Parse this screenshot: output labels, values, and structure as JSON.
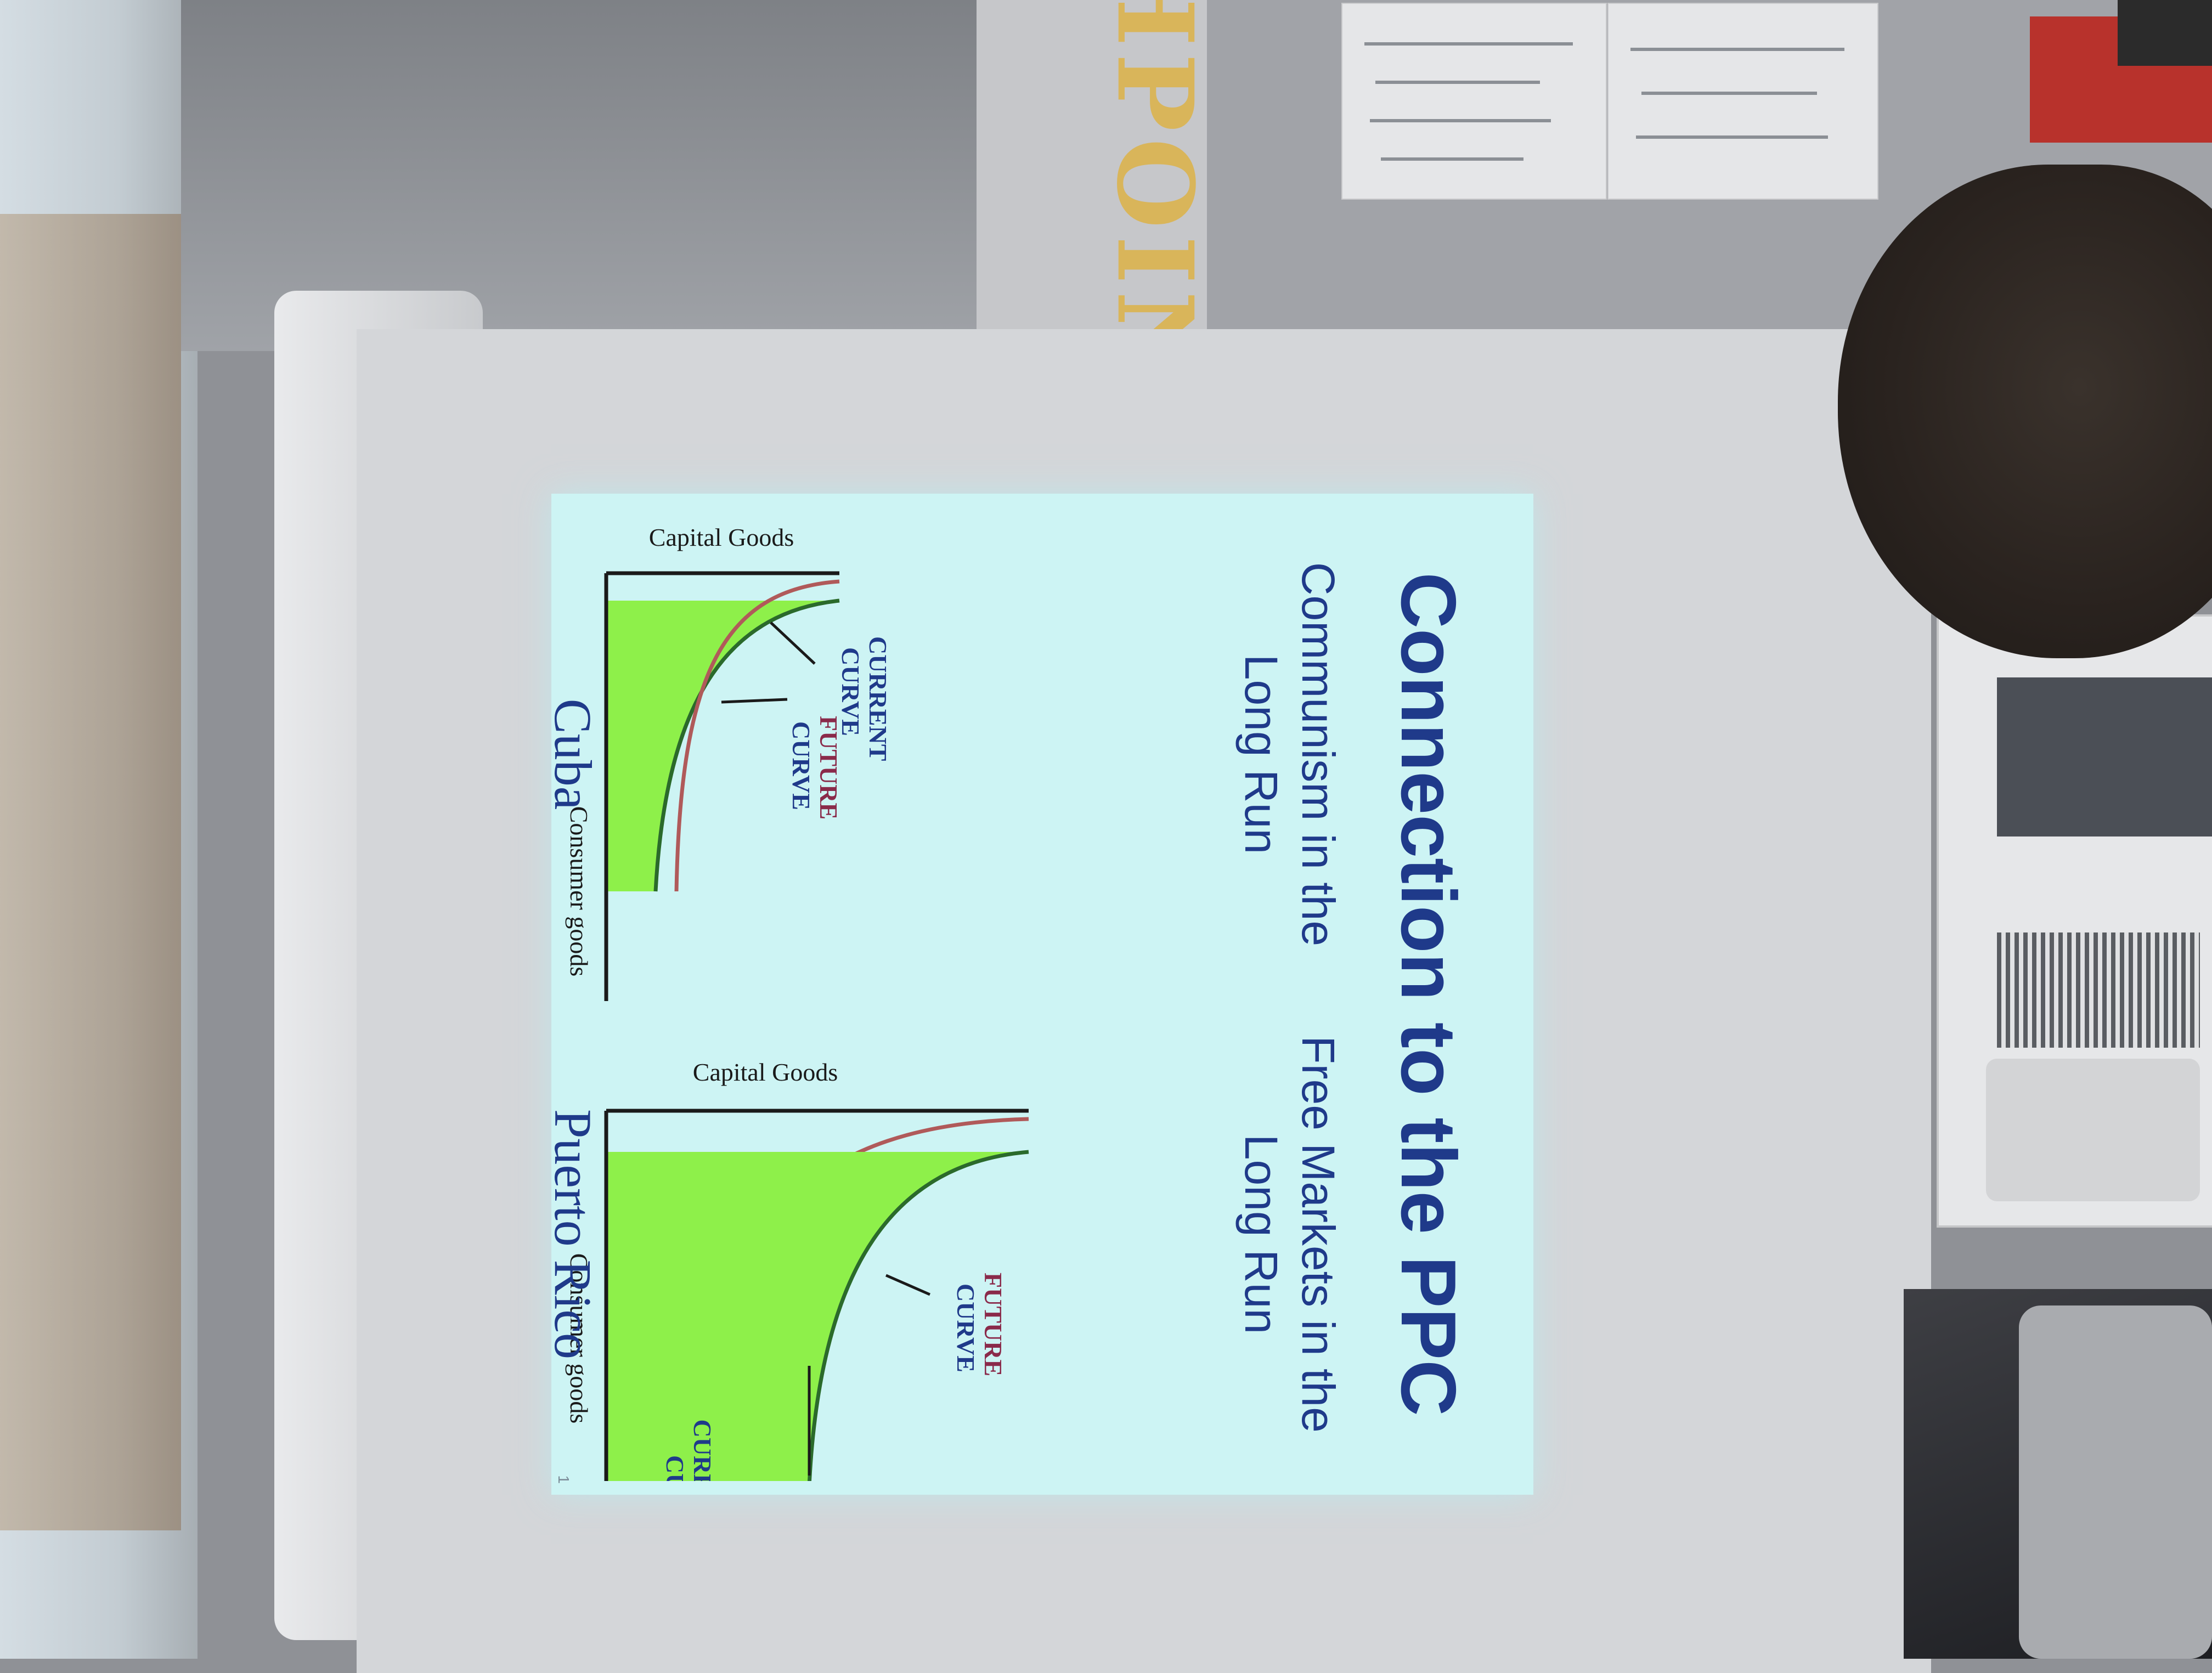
{
  "background": {
    "wall_sign_text": "HPOIN"
  },
  "slide": {
    "title": "Connection to the PPC",
    "page_number": "1",
    "panels": [
      {
        "heading": "Communism in the\nLong Run",
        "country": "Cuba",
        "y_axis_label": "Capital Goods",
        "x_axis_label": "Consumer goods",
        "current_curve_label_1": "CURRENT",
        "current_curve_label_2": "CURVE",
        "future_curve_label_1": "FUTURE",
        "future_curve_label_2": "CURVE"
      },
      {
        "heading": "Free Markets in the\nLong Run",
        "country": "Puerto Rico",
        "y_axis_label": "Capital Goods",
        "x_axis_label": "Consumer goods",
        "current_curve_label_1": "CURRENT",
        "current_curve_label_2": "CURVE",
        "future_curve_label_1": "FUTURE",
        "future_curve_label_2": "CURVE"
      }
    ],
    "colors": {
      "slide_background": "#cdf4f4",
      "title_blue": "#1f3a8a",
      "fill_green": "#8ef04a",
      "current_curve": "#2b6a2b",
      "future_curve": "#b05a5a",
      "axis": "#1a1a1a"
    }
  }
}
